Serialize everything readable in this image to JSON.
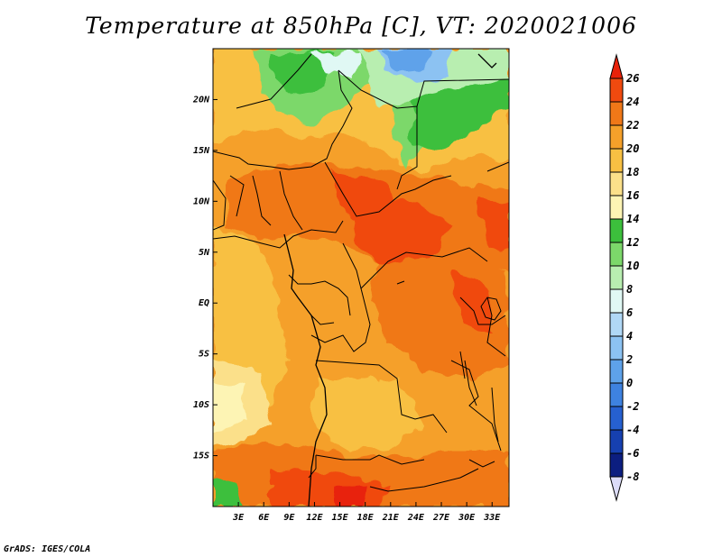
{
  "title": "Temperature at 850hPa [C], VT: 2020021006",
  "credit": "GrADS: IGES/COLA",
  "map": {
    "lon_range": [
      0,
      35
    ],
    "lat_range": [
      -20,
      25
    ],
    "lon_ticks": [
      {
        "value": 3,
        "label": "3E"
      },
      {
        "value": 6,
        "label": "6E"
      },
      {
        "value": 9,
        "label": "9E"
      },
      {
        "value": 12,
        "label": "12E"
      },
      {
        "value": 15,
        "label": "15E"
      },
      {
        "value": 18,
        "label": "18E"
      },
      {
        "value": 21,
        "label": "21E"
      },
      {
        "value": 24,
        "label": "24E"
      },
      {
        "value": 27,
        "label": "27E"
      },
      {
        "value": 30,
        "label": "30E"
      },
      {
        "value": 33,
        "label": "33E"
      }
    ],
    "lat_ticks": [
      {
        "value": 20,
        "label": "20N"
      },
      {
        "value": 15,
        "label": "15N"
      },
      {
        "value": 10,
        "label": "10N"
      },
      {
        "value": 5,
        "label": "5N"
      },
      {
        "value": 0,
        "label": "EQ"
      },
      {
        "value": -5,
        "label": "5S"
      },
      {
        "value": -10,
        "label": "10S"
      },
      {
        "value": -15,
        "label": "15S"
      }
    ]
  },
  "colorbar": {
    "levels": [
      {
        "label": "26",
        "color": "#e8220a"
      },
      {
        "label": "24",
        "color": "#f04a0f"
      },
      {
        "label": "22",
        "color": "#f07818"
      },
      {
        "label": "20",
        "color": "#f5a02a"
      },
      {
        "label": "18",
        "color": "#f8c043"
      },
      {
        "label": "16",
        "color": "#fbe08a"
      },
      {
        "label": "14",
        "color": "#fdf4b4"
      },
      {
        "label": "12",
        "color": "#3cbf3c"
      },
      {
        "label": "10",
        "color": "#7cd86a"
      },
      {
        "label": "8",
        "color": "#b8eeb0"
      },
      {
        "label": "6",
        "color": "#e0f8f4"
      },
      {
        "label": "4",
        "color": "#b0d8f6"
      },
      {
        "label": "2",
        "color": "#8cc2f2"
      },
      {
        "label": "0",
        "color": "#5ea2ea"
      },
      {
        "label": "-2",
        "color": "#3e82e0"
      },
      {
        "label": "-4",
        "color": "#2660d0"
      },
      {
        "label": "-6",
        "color": "#1640b0"
      },
      {
        "label": "-8",
        "color": "#0c1e80"
      }
    ],
    "top_arrow_color": "#e8220a",
    "bottom_arrow_color": "#dcdcf8"
  }
}
